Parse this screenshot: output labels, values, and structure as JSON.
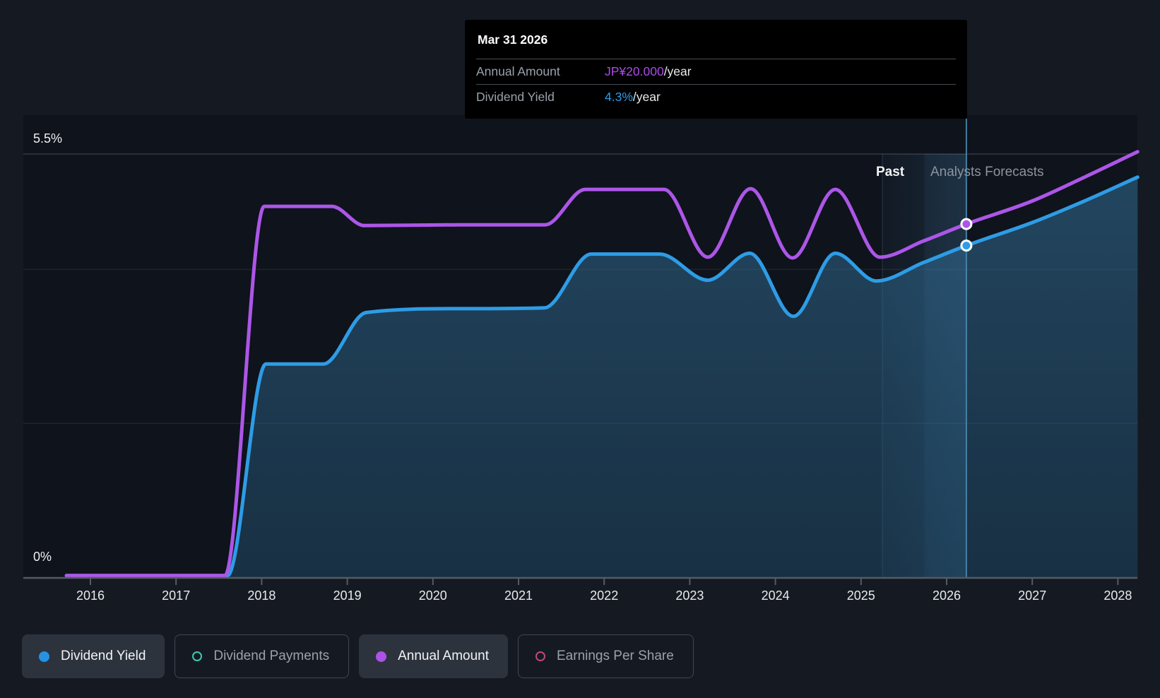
{
  "tooltip": {
    "title": "Mar 31 2026",
    "rows": [
      {
        "label": "Annual Amount",
        "value": "JP¥20.000",
        "suffix": "/year",
        "value_color": "#AB4BE8"
      },
      {
        "label": "Dividend Yield",
        "value": "4.3%",
        "suffix": "/year",
        "value_color": "#2D9CE8"
      }
    ]
  },
  "chart": {
    "y_axis": {
      "top_label": "5.5%",
      "bottom_label": "0%"
    },
    "annotations": {
      "past_label": "Past",
      "forecast_label": "Analysts Forecasts"
    }
  },
  "chart_data": {
    "type": "line",
    "title": "Dividend yield history and forecast",
    "x_axis": {
      "tick_years": [
        2016,
        2017,
        2018,
        2019,
        2020,
        2021,
        2022,
        2023,
        2024,
        2025,
        2026,
        2027,
        2028
      ],
      "range": [
        2015.2,
        2028.5
      ]
    },
    "y_axis": {
      "unit": "%",
      "range": [
        0,
        5.5
      ],
      "labeled_ticks": [
        "5.5%",
        "0%"
      ],
      "gridlines_pct": [
        5.5,
        4,
        2,
        0
      ],
      "grid": true
    },
    "legend_position": "bottom",
    "past_forecast_boundary_year": 2025.25,
    "marker": {
      "date": "Mar 31 2026",
      "year": 2026.23,
      "annual_amount": "JP¥20.000/year",
      "dividend_yield": "4.3%/year",
      "points": [
        {
          "series": "Annual Amount",
          "axis_pct": 4.59,
          "color": "#AC56E8"
        },
        {
          "series": "Dividend Yield",
          "axis_pct": 4.31,
          "color": "#2E9CE6"
        }
      ]
    },
    "series": [
      {
        "name": "Dividend Yield",
        "color": "#2E9CE6",
        "visible": true,
        "area": true,
        "points": [
          [
            2015.72,
            0.02
          ],
          [
            2017.6,
            0.02
          ],
          [
            2018.05,
            2.77
          ],
          [
            2018.72,
            2.77
          ],
          [
            2019.22,
            3.44
          ],
          [
            2020.3,
            3.49
          ],
          [
            2021.3,
            3.5
          ],
          [
            2021.85,
            4.2
          ],
          [
            2022.65,
            4.2
          ],
          [
            2023.21,
            3.86
          ],
          [
            2023.7,
            4.21
          ],
          [
            2024.21,
            3.39
          ],
          [
            2024.7,
            4.21
          ],
          [
            2025.18,
            3.85
          ],
          [
            2025.73,
            4.09
          ],
          [
            2026.23,
            4.31
          ],
          [
            2027.0,
            4.61
          ],
          [
            2027.63,
            4.9
          ],
          [
            2028.23,
            5.2
          ]
        ]
      },
      {
        "name": "Annual Amount",
        "color": "#AC56E8",
        "visible": true,
        "area": false,
        "points": [
          [
            2015.72,
            0.02
          ],
          [
            2017.57,
            0.02
          ],
          [
            2018.03,
            4.82
          ],
          [
            2018.82,
            4.82
          ],
          [
            2019.2,
            4.57
          ],
          [
            2020.3,
            4.58
          ],
          [
            2021.31,
            4.58
          ],
          [
            2021.78,
            5.04
          ],
          [
            2022.7,
            5.04
          ],
          [
            2023.21,
            4.16
          ],
          [
            2023.71,
            5.05
          ],
          [
            2024.2,
            4.15
          ],
          [
            2024.7,
            5.04
          ],
          [
            2025.22,
            4.16
          ],
          [
            2025.73,
            4.37
          ],
          [
            2026.23,
            4.59
          ],
          [
            2027.0,
            4.89
          ],
          [
            2027.63,
            5.21
          ],
          [
            2028.23,
            5.53
          ]
        ]
      },
      {
        "name": "Dividend Payments",
        "color": "#3EC9AE",
        "visible": false,
        "points": []
      },
      {
        "name": "Earnings Per Share",
        "color": "#C2477E",
        "visible": false,
        "points": []
      }
    ]
  },
  "legend": {
    "items": [
      {
        "label": "Dividend Yield",
        "swatch": "dot",
        "color": "#2493E4",
        "active": true
      },
      {
        "label": "Dividend Payments",
        "swatch": "ring",
        "color": "#3EC9AE",
        "active": false
      },
      {
        "label": "Annual Amount",
        "swatch": "dot",
        "color": "#AC52E8",
        "active": true
      },
      {
        "label": "Earnings Per Share",
        "swatch": "ring",
        "color": "#C2477E",
        "active": false
      }
    ]
  },
  "colors": {
    "page_bg": "#151A22",
    "plot_bg": "#0F131B",
    "tooltip_bg": "#000000",
    "axis": "#555B64",
    "crosshair": "#4A88B0",
    "yield_line": "#2E9CE6",
    "amount_line": "#AC56E8"
  }
}
